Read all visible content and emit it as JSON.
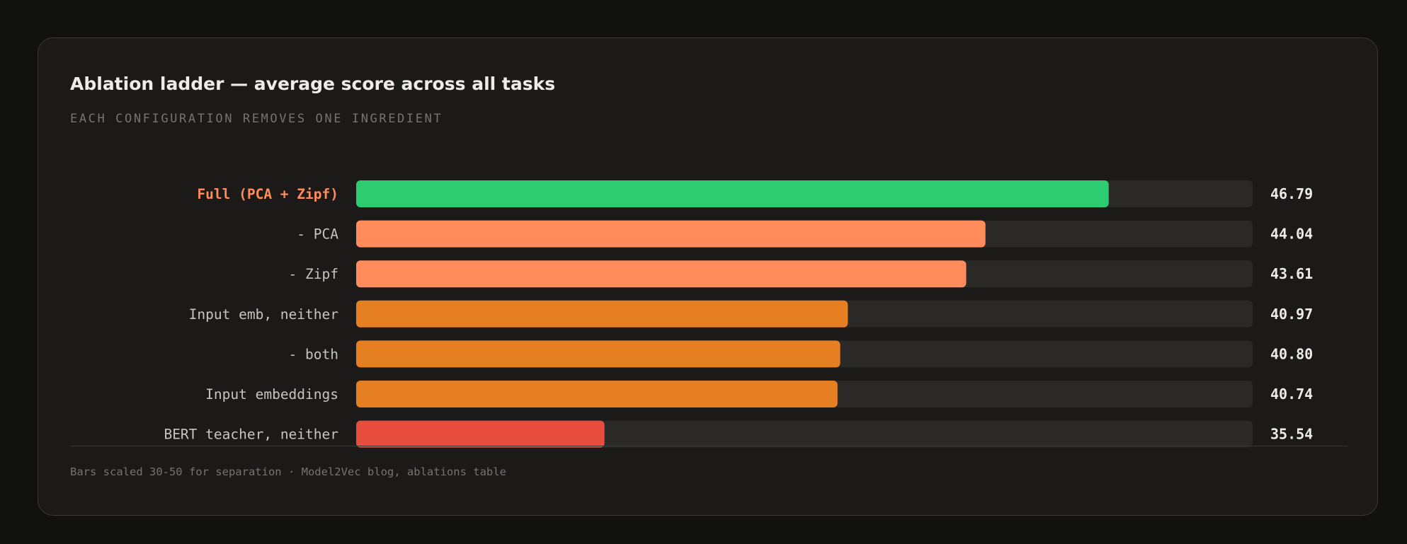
{
  "chart_data": {
    "type": "bar",
    "orientation": "horizontal",
    "title": "Ablation ladder — average score across all tasks",
    "subtitle": "EACH CONFIGURATION REMOVES ONE INGREDIENT",
    "categories": [
      "Full (PCA + Zipf)",
      "- PCA",
      "- Zipf",
      "Input emb, neither",
      "- both",
      "Input embeddings",
      "BERT teacher, neither"
    ],
    "values": [
      46.79,
      44.04,
      43.61,
      40.97,
      40.8,
      40.74,
      35.54
    ],
    "value_labels": [
      "46.79",
      "44.04",
      "43.61",
      "40.97",
      "40.80",
      "40.74",
      "35.54"
    ],
    "bar_colors": [
      "#2ecc71",
      "#ff8c5a",
      "#ff8c5a",
      "#e67e22",
      "#e67e22",
      "#e67e22",
      "#e74c3c"
    ],
    "highlight_label_color": "#ff8c5a",
    "xlim": [
      30,
      50
    ],
    "grid": false,
    "legend": "none",
    "footnote": "Bars scaled 30-50 for separation · Model2Vec blog, ablations table"
  }
}
